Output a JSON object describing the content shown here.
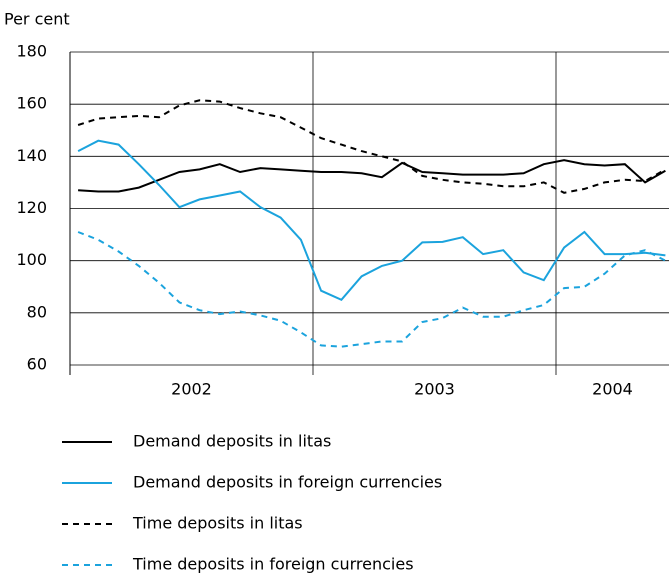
{
  "chart_data": {
    "type": "line",
    "y_label": "Per cent",
    "categories": [
      null,
      null,
      null,
      null,
      null,
      null,
      null,
      null,
      null,
      null,
      null,
      null,
      null,
      null,
      null,
      null,
      null,
      null,
      null,
      null,
      null,
      null,
      null,
      null,
      null,
      null,
      null,
      null,
      null,
      null
    ],
    "periods": [
      "2002",
      "2003",
      "2004"
    ],
    "ylim": [
      60,
      180
    ],
    "yticks": [
      60,
      80,
      100,
      120,
      140,
      160,
      180
    ],
    "grid": true,
    "series": [
      {
        "name": "Demand deposits in litas",
        "color": "#000000",
        "dashed": false,
        "values": [
          127,
          126.5,
          126.5,
          128,
          131,
          134,
          135,
          137,
          134,
          135.5,
          135,
          134.5,
          134,
          134,
          133.5,
          132,
          137.5,
          134,
          133.5,
          133,
          133,
          133,
          133.5,
          137,
          138.5,
          137,
          136.5,
          137,
          130,
          134.5
        ]
      },
      {
        "name": "Demand deposits in foreign currencies",
        "color": "#1ba3dd",
        "dashed": false,
        "values": [
          142,
          146,
          144.5,
          137,
          129,
          120.5,
          123.5,
          125,
          126.5,
          120.5,
          116.5,
          108,
          88.5,
          85,
          94,
          98,
          100,
          107,
          107.2,
          109,
          102.5,
          104,
          95.5,
          92.5,
          105,
          111,
          102.5,
          102.5,
          103,
          102
        ]
      },
      {
        "name": "Time deposits in litas",
        "color": "#000000",
        "dashed": true,
        "values": [
          152,
          154.5,
          155,
          155.5,
          155,
          159.5,
          161.5,
          161,
          158.5,
          156.5,
          155,
          151,
          147,
          144.5,
          142,
          140,
          138,
          132.5,
          131,
          130,
          129.5,
          128.5,
          128.5,
          130,
          126,
          127.5,
          130,
          131,
          130.5,
          135
        ]
      },
      {
        "name": "Time deposits in foreign currencies",
        "color": "#1ba3dd",
        "dashed": true,
        "values": [
          111,
          108,
          103.5,
          98,
          91.5,
          84,
          81,
          79.5,
          80.5,
          79,
          77,
          72.5,
          67.5,
          67,
          68,
          69,
          69,
          76.5,
          78,
          82,
          78.5,
          78.5,
          81,
          83,
          89.5,
          90,
          95,
          102,
          104,
          100
        ]
      }
    ]
  }
}
